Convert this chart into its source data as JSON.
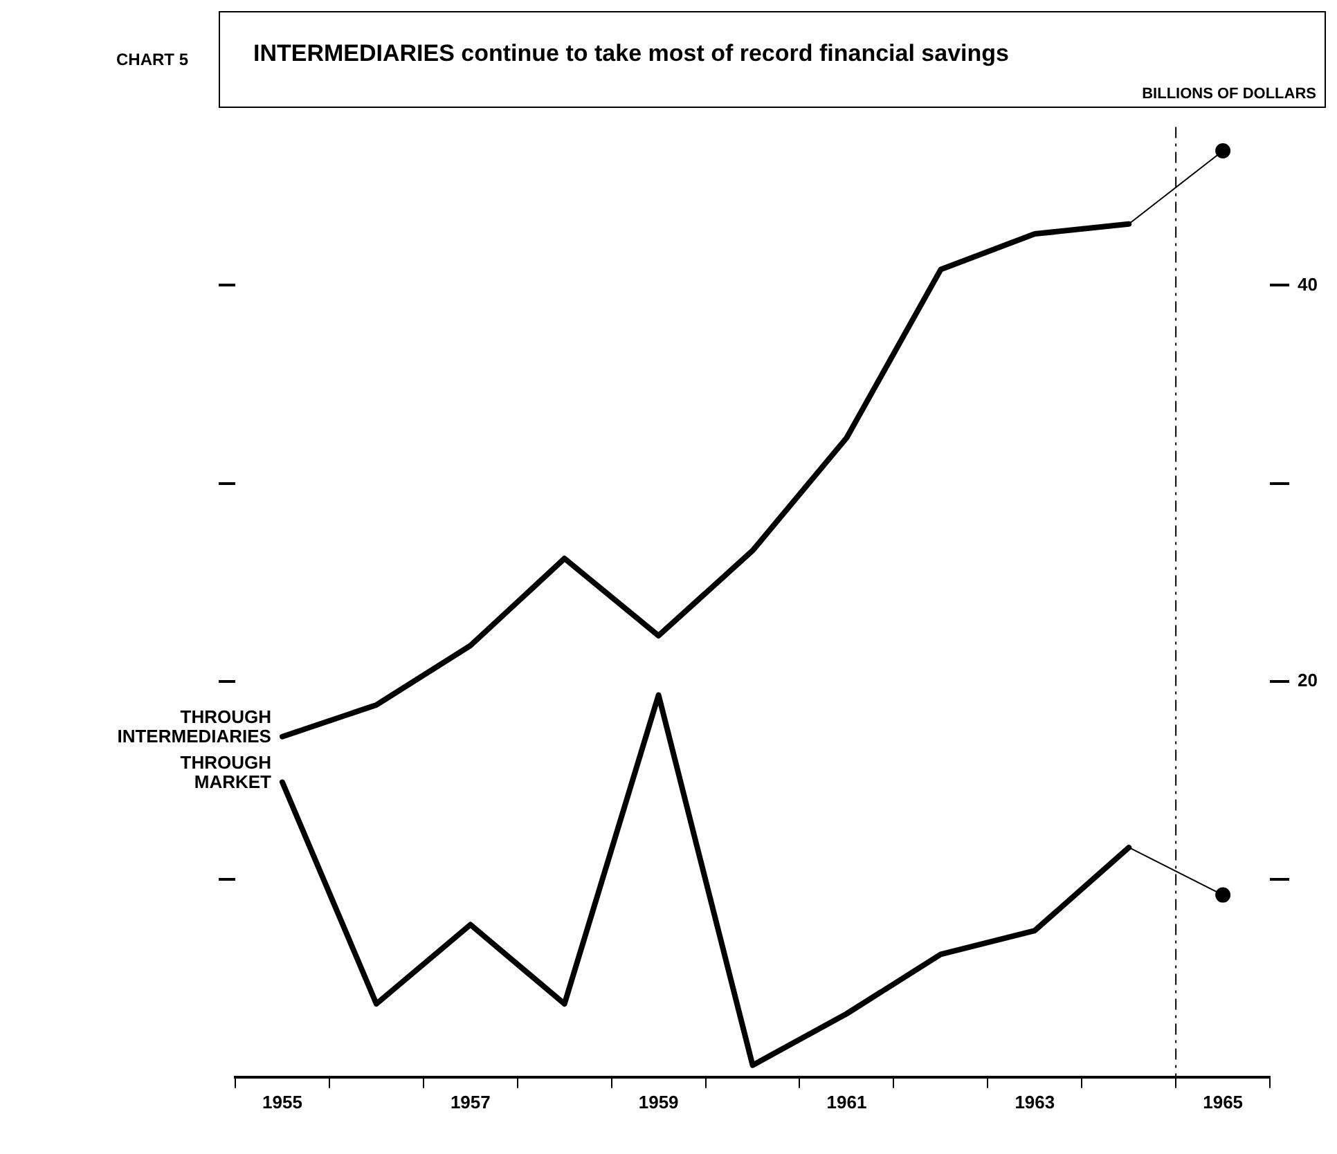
{
  "chart_data": {
    "type": "line",
    "title": "INTERMEDIARIES continue to take most of record financial savings",
    "ylabel": "BILLIONS OF DOLLARS",
    "annotations": [
      "CHART 5"
    ],
    "series": [
      {
        "name": "THROUGH INTERMEDIARIES",
        "color": "#000000",
        "x": [
          1955,
          1956,
          1957,
          1958,
          1959,
          1960,
          1961,
          1962,
          1963,
          1964
        ],
        "values": [
          17.2,
          18.8,
          21.8,
          26.2,
          22.3,
          26.6,
          32.3,
          40.8,
          42.6,
          43.1
        ]
      },
      {
        "name": "THROUGH MARKET",
        "color": "#000000",
        "x": [
          1955,
          1956,
          1957,
          1958,
          1959,
          1960,
          1961,
          1962,
          1963,
          1964
        ],
        "values": [
          14.9,
          3.7,
          7.7,
          3.7,
          19.3,
          0.6,
          3.2,
          6.2,
          7.4,
          11.6
        ]
      },
      {
        "color": "#000000",
        "marker": "circle",
        "x": [
          1964,
          1965
        ],
        "values": [
          43.1,
          46.8
        ]
      },
      {
        "color": "#000000",
        "marker": "circle",
        "x": [
          1964,
          1965
        ],
        "values": [
          11.6,
          9.2
        ]
      }
    ],
    "xlim": [
      1954.5,
      1965.5
    ],
    "xticks": [
      {
        "value": 1954.5,
        "label": null
      },
      1955,
      {
        "value": 1955.5,
        "label": null
      },
      {
        "value": 1956.5,
        "label": null
      },
      1957,
      {
        "value": 1957.5,
        "label": null
      },
      {
        "value": 1958.5,
        "label": null
      },
      1959,
      {
        "value": 1959.5,
        "label": null
      },
      {
        "value": 1960.5,
        "label": null
      },
      1961,
      {
        "value": 1961.5,
        "label": null
      },
      {
        "value": 1962.5,
        "label": null
      },
      1963,
      {
        "value": 1963.5,
        "label": null
      },
      {
        "value": 1964.5,
        "label": null
      },
      1965,
      {
        "value": 1965.5,
        "label": null
      }
    ],
    "ylim": [
      0,
      48
    ],
    "yticks": [
      {
        "value": 10,
        "label": null
      },
      20,
      {
        "value": 30,
        "label": null
      },
      40
    ],
    "ref_lines": [
      {
        "axis": "x",
        "value": 1964.5,
        "line_style": "dashed"
      }
    ],
    "grid": false,
    "legend": false,
    "marker": "none",
    "line_style": "solid"
  }
}
